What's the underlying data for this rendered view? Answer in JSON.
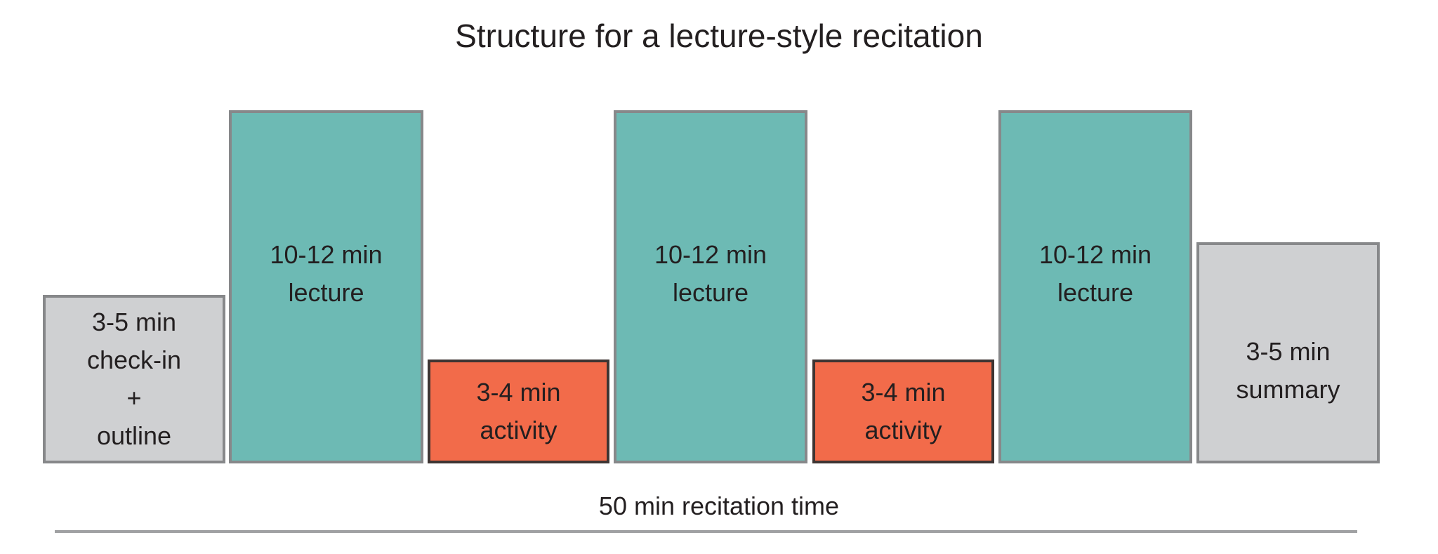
{
  "title": "Structure for a lecture-style recitation",
  "colors": {
    "lecture": "#6dbab4",
    "activity": "#f26b4a",
    "bookend": "#cfd0d2"
  },
  "blocks": [
    {
      "type": "bookend",
      "lines": [
        "3-5 min",
        "check-in",
        "+",
        "outline"
      ]
    },
    {
      "type": "lecture",
      "lines": [
        "10-12 min",
        "lecture"
      ]
    },
    {
      "type": "activity",
      "lines": [
        "3-4 min",
        "activity"
      ]
    },
    {
      "type": "lecture",
      "lines": [
        "10-12 min",
        "lecture"
      ]
    },
    {
      "type": "activity",
      "lines": [
        "3-4 min",
        "activity"
      ]
    },
    {
      "type": "lecture",
      "lines": [
        "10-12 min",
        "lecture"
      ]
    },
    {
      "type": "bookend",
      "lines": [
        "3-5 min",
        "summary"
      ]
    }
  ],
  "footer": "50 min recitation time"
}
